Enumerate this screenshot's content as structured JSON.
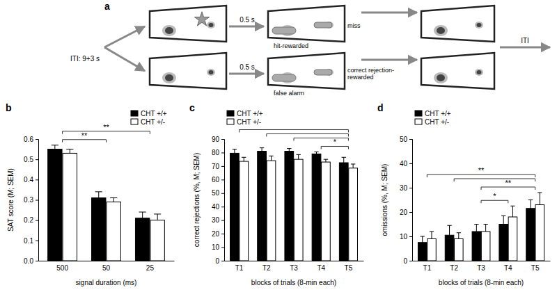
{
  "diagram": {
    "title": "a",
    "iti_label": "ITI: 9+3 s",
    "delay_labels": [
      "0.5 s",
      "0.5 s"
    ],
    "signal_trial": {
      "hit": "hit-rewarded",
      "miss": "miss"
    },
    "nonsignal_trial": {
      "false_alarm": "false alarm",
      "correct_rejection": [
        "correct rejection-",
        "rewarded"
      ]
    },
    "end_label": "ITI"
  },
  "chart_data": [
    {
      "type": "bar",
      "title": "b",
      "categories": [
        "500",
        "50",
        "25"
      ],
      "xlabel": "signal duration (ms)",
      "ylabel": "SAT score (M; SEM)",
      "ylim": [
        0,
        0.6
      ],
      "yticks": [
        {
          "value": 0,
          "label": "0.0"
        },
        0.1,
        0.2,
        0.3,
        0.4,
        0.5,
        0.6
      ],
      "legend": "upper right",
      "series": [
        {
          "name": "CHT +/+",
          "color": "#000000",
          "values": [
            0.55,
            0.31,
            0.21
          ],
          "errors": [
            0.02,
            0.03,
            0.03
          ]
        },
        {
          "name": "CHT +/-",
          "color": "#ffffff",
          "values": [
            0.53,
            0.29,
            0.2
          ],
          "errors": [
            0.02,
            0.02,
            0.03
          ]
        }
      ],
      "annotations": [
        {
          "text": "**",
          "from": "500",
          "to": "50"
        },
        {
          "text": "**",
          "from": "500",
          "to": "25"
        }
      ]
    },
    {
      "type": "bar",
      "title": "c",
      "categories": [
        "T1",
        "T2",
        "T3",
        "T4",
        "T5"
      ],
      "xlabel": "blocks of trials (8-min each)",
      "ylabel": "correct rejections (%, M; SEM)",
      "ylim": [
        0,
        90
      ],
      "yticks": [
        0,
        10,
        20,
        30,
        40,
        50,
        60,
        70,
        80,
        90
      ],
      "legend": "upper left",
      "series": [
        {
          "name": "CHT +/+",
          "color": "#000000",
          "values": [
            79.5,
            81,
            81,
            79,
            72.5
          ],
          "errors": [
            3,
            2.5,
            2,
            1.5,
            4
          ]
        },
        {
          "name": "CHT +/-",
          "color": "#ffffff",
          "values": [
            73.5,
            74,
            75,
            73,
            68.5
          ],
          "errors": [
            3,
            3.5,
            3.5,
            2,
            3
          ]
        }
      ],
      "annotations": [
        {
          "text": "*",
          "from": "T4",
          "to": "T5"
        },
        {
          "from": "T3",
          "to": "T5"
        },
        {
          "from": "T2",
          "to": "T5"
        },
        {
          "from": "T1",
          "to": "T5"
        }
      ]
    },
    {
      "type": "bar",
      "title": "d",
      "categories": [
        "T1",
        "T2",
        "T3",
        "T4",
        "T5"
      ],
      "xlabel": "blocks of trials (8-min each)",
      "ylabel": "omissions (%, M; SEM)",
      "ylim": [
        0,
        50
      ],
      "yticks": [
        0,
        10,
        20,
        30,
        40,
        50
      ],
      "legend": "upper left",
      "series": [
        {
          "name": "CHT +/+",
          "color": "#000000",
          "values": [
            7.5,
            10.5,
            12,
            15,
            21.5
          ],
          "errors": [
            2.5,
            4,
            3,
            3.5,
            3.5
          ]
        },
        {
          "name": "CHT +/-",
          "color": "#ffffff",
          "values": [
            9,
            9,
            12,
            18,
            23
          ],
          "errors": [
            3,
            2.5,
            3,
            4.5,
            5
          ]
        }
      ],
      "annotations": [
        {
          "text": "*",
          "from": "T3",
          "to": "T4"
        },
        {
          "text": "**",
          "from": "T3",
          "to": "T5"
        },
        {
          "from": "T2",
          "to": "T5"
        },
        {
          "text": "**",
          "from": "T1",
          "to": "T5"
        }
      ]
    }
  ]
}
